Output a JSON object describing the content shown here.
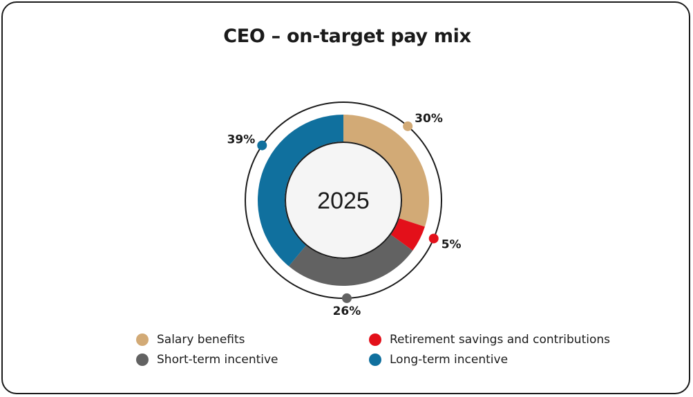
{
  "chart_data": {
    "type": "pie",
    "title": "CEO – on-target pay mix",
    "center_label": "2025",
    "series": [
      {
        "name": "Salary benefits",
        "value": 30,
        "label": "30%",
        "color": "#d2aa76"
      },
      {
        "name": "Retirement savings and contributions",
        "value": 5,
        "label": "5%",
        "color": "#e3101a"
      },
      {
        "name": "Short-term incentive",
        "value": 26,
        "label": "26%",
        "color": "#626262"
      },
      {
        "name": "Long-term incentive",
        "value": 39,
        "label": "39%",
        "color": "#10709e"
      }
    ],
    "legend": [
      {
        "label": "Salary benefits",
        "color": "#d2aa76"
      },
      {
        "label": "Retirement savings and contributions",
        "color": "#e3101a"
      },
      {
        "label": "Short-term incentive",
        "color": "#626262"
      },
      {
        "label": "Long-term incentive",
        "color": "#10709e"
      }
    ],
    "legend_position": "bottom"
  }
}
